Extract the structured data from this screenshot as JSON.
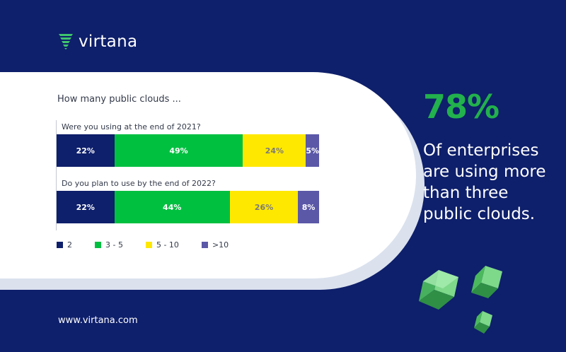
{
  "brand": {
    "name": "virtana"
  },
  "chart_data": {
    "type": "bar",
    "orientation": "horizontal-stacked-100",
    "title": "How many public clouds ...",
    "categories": [
      "Were you using at the end of 2021?",
      "Do you plan to use by the end of 2022?"
    ],
    "series": [
      {
        "name": "2",
        "color": "#0e1f6b",
        "label_color": "#ffffff",
        "values": [
          22,
          22
        ],
        "labels": [
          "22%",
          "22%"
        ]
      },
      {
        "name": "3 - 5",
        "color": "#00c040",
        "label_color": "#ffffff",
        "values": [
          49,
          44
        ],
        "labels": [
          "49%",
          "44%"
        ]
      },
      {
        "name": "5 - 10",
        "color": "#ffe800",
        "label_color": "#7a7a7a",
        "values": [
          24,
          26
        ],
        "labels": [
          "24%",
          "26%"
        ]
      },
      {
        "name": ">10",
        "color": "#5b58a8",
        "label_color": "#ffffff",
        "values": [
          5,
          8
        ],
        "labels": [
          "5%",
          "8%"
        ]
      }
    ],
    "legend_position": "bottom-left",
    "grid": false
  },
  "highlight": {
    "value": "78%",
    "color": "#22b14c",
    "lines": [
      "Of enterprises",
      "are using more",
      "than three",
      "public clouds."
    ]
  },
  "footer": {
    "url": "www.virtana.com"
  },
  "colors": {
    "background": "#0e1f6b",
    "panel": "#ffffff",
    "accent": "#22b14c"
  }
}
